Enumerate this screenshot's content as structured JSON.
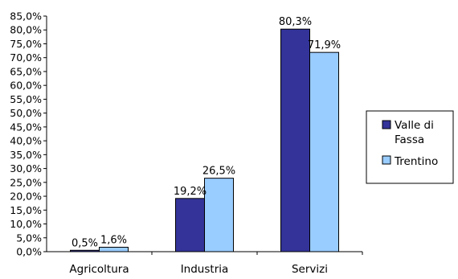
{
  "chart_data": {
    "type": "bar",
    "title": "",
    "xlabel": "",
    "ylabel": "",
    "categories": [
      "Agricoltura",
      "Industria",
      "Servizi"
    ],
    "series": [
      {
        "name": "Valle di Fassa",
        "values": [
          0.5,
          19.2,
          80.3
        ],
        "labels": [
          "0,5%",
          "19,2%",
          "80,3%"
        ],
        "color": "#333399"
      },
      {
        "name": "Trentino",
        "values": [
          1.6,
          26.5,
          71.9
        ],
        "labels": [
          "1,6%",
          "26,5%",
          "71,9%"
        ],
        "color": "#99ccff"
      }
    ],
    "ylim": [
      0,
      85
    ],
    "ytick_step": 5,
    "yticks": [
      "0,0%",
      "5,0%",
      "10,0%",
      "15,0%",
      "20,0%",
      "25,0%",
      "30,0%",
      "35,0%",
      "40,0%",
      "45,0%",
      "50,0%",
      "55,0%",
      "60,0%",
      "65,0%",
      "70,0%",
      "75,0%",
      "80,0%",
      "85,0%"
    ],
    "grid": false,
    "legend_position": "right",
    "legend_labels": {
      "valle_line1": "Valle di",
      "valle_line2": "Fassa",
      "trentino": "Trentino"
    },
    "edge_color": "#000000"
  }
}
